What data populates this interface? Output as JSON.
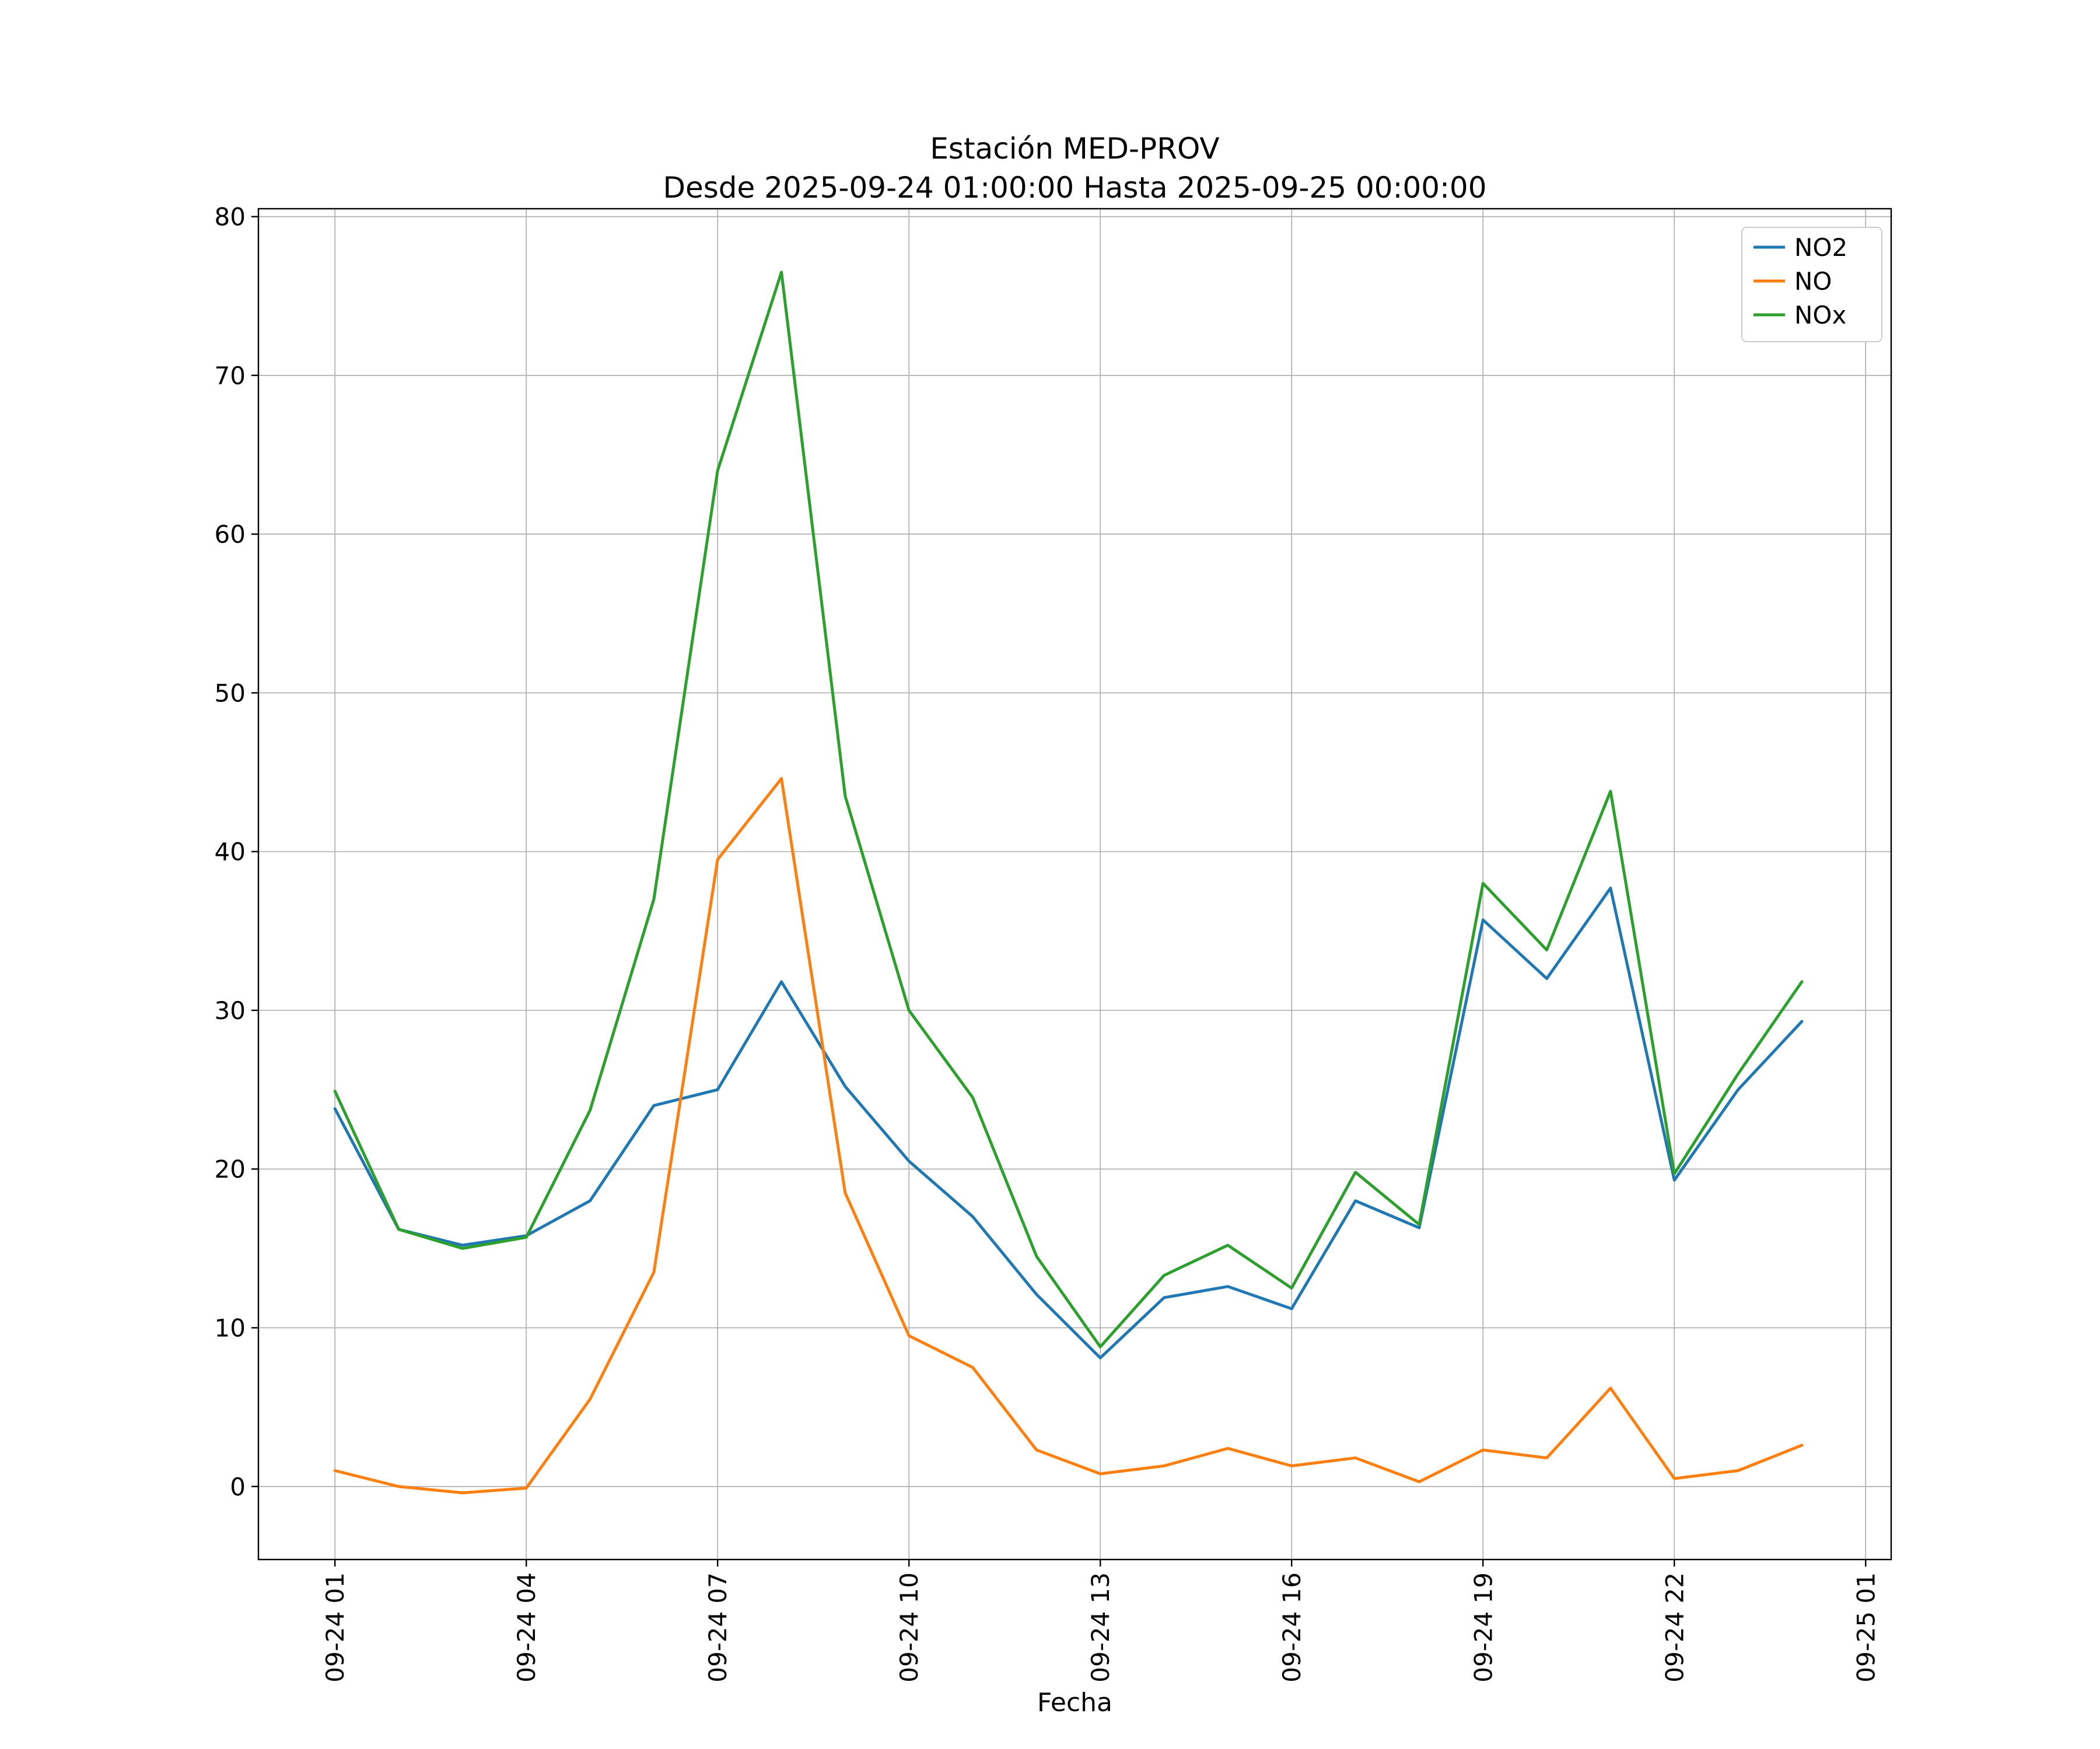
{
  "chart_data": {
    "type": "line",
    "title": "Estación MED-PROV",
    "subtitle": "Desde 2025-09-24 01:00:00 Hasta 2025-09-25 00:00:00",
    "xlabel": "Fecha",
    "ylabel": "",
    "grid": true,
    "legend_position": "upper right",
    "xlim": [
      -0.2,
      25.4
    ],
    "ylim": [
      -4.6,
      80.5
    ],
    "x_hours": [
      1,
      2,
      3,
      4,
      5,
      6,
      7,
      8,
      9,
      10,
      11,
      12,
      13,
      14,
      15,
      16,
      17,
      18,
      19,
      20,
      21,
      22,
      23,
      24
    ],
    "x_tick_hours": [
      1,
      4,
      7,
      10,
      13,
      16,
      19,
      22,
      25
    ],
    "x_tick_labels": [
      "09-24 01",
      "09-24 04",
      "09-24 07",
      "09-24 10",
      "09-24 13",
      "09-24 16",
      "09-24 19",
      "09-24 22",
      "09-25 01"
    ],
    "y_ticks": [
      0,
      10,
      20,
      30,
      40,
      50,
      60,
      70,
      80
    ],
    "colors": {
      "no2": "#1f77b4",
      "no": "#ff7f0e",
      "nox": "#2ca02c",
      "grid": "#b0b0b0",
      "spine": "#000000",
      "legend_edge": "#cccccc"
    },
    "series": [
      {
        "name": "NO2",
        "color": "#1f77b4",
        "values": [
          23.8,
          16.2,
          15.2,
          15.8,
          18.0,
          24.0,
          25.0,
          31.8,
          25.2,
          20.5,
          17.0,
          12.1,
          8.1,
          11.9,
          12.6,
          11.2,
          18.0,
          16.3,
          35.7,
          32.0,
          37.7,
          19.3,
          25.0,
          29.3
        ]
      },
      {
        "name": "NO",
        "color": "#ff7f0e",
        "values": [
          1.0,
          0.0,
          -0.4,
          -0.1,
          5.5,
          13.5,
          39.5,
          44.6,
          18.5,
          9.5,
          7.5,
          2.3,
          0.8,
          1.3,
          2.4,
          1.3,
          1.8,
          0.3,
          2.3,
          1.8,
          6.2,
          0.5,
          1.0,
          2.6
        ]
      },
      {
        "name": "NOx",
        "color": "#2ca02c",
        "values": [
          24.9,
          16.2,
          15.0,
          15.7,
          23.7,
          37.0,
          64.0,
          76.5,
          43.5,
          30.0,
          24.5,
          14.5,
          8.8,
          13.3,
          15.2,
          12.5,
          19.8,
          16.5,
          38.0,
          33.8,
          43.8,
          19.7,
          26.0,
          31.8
        ]
      }
    ]
  }
}
